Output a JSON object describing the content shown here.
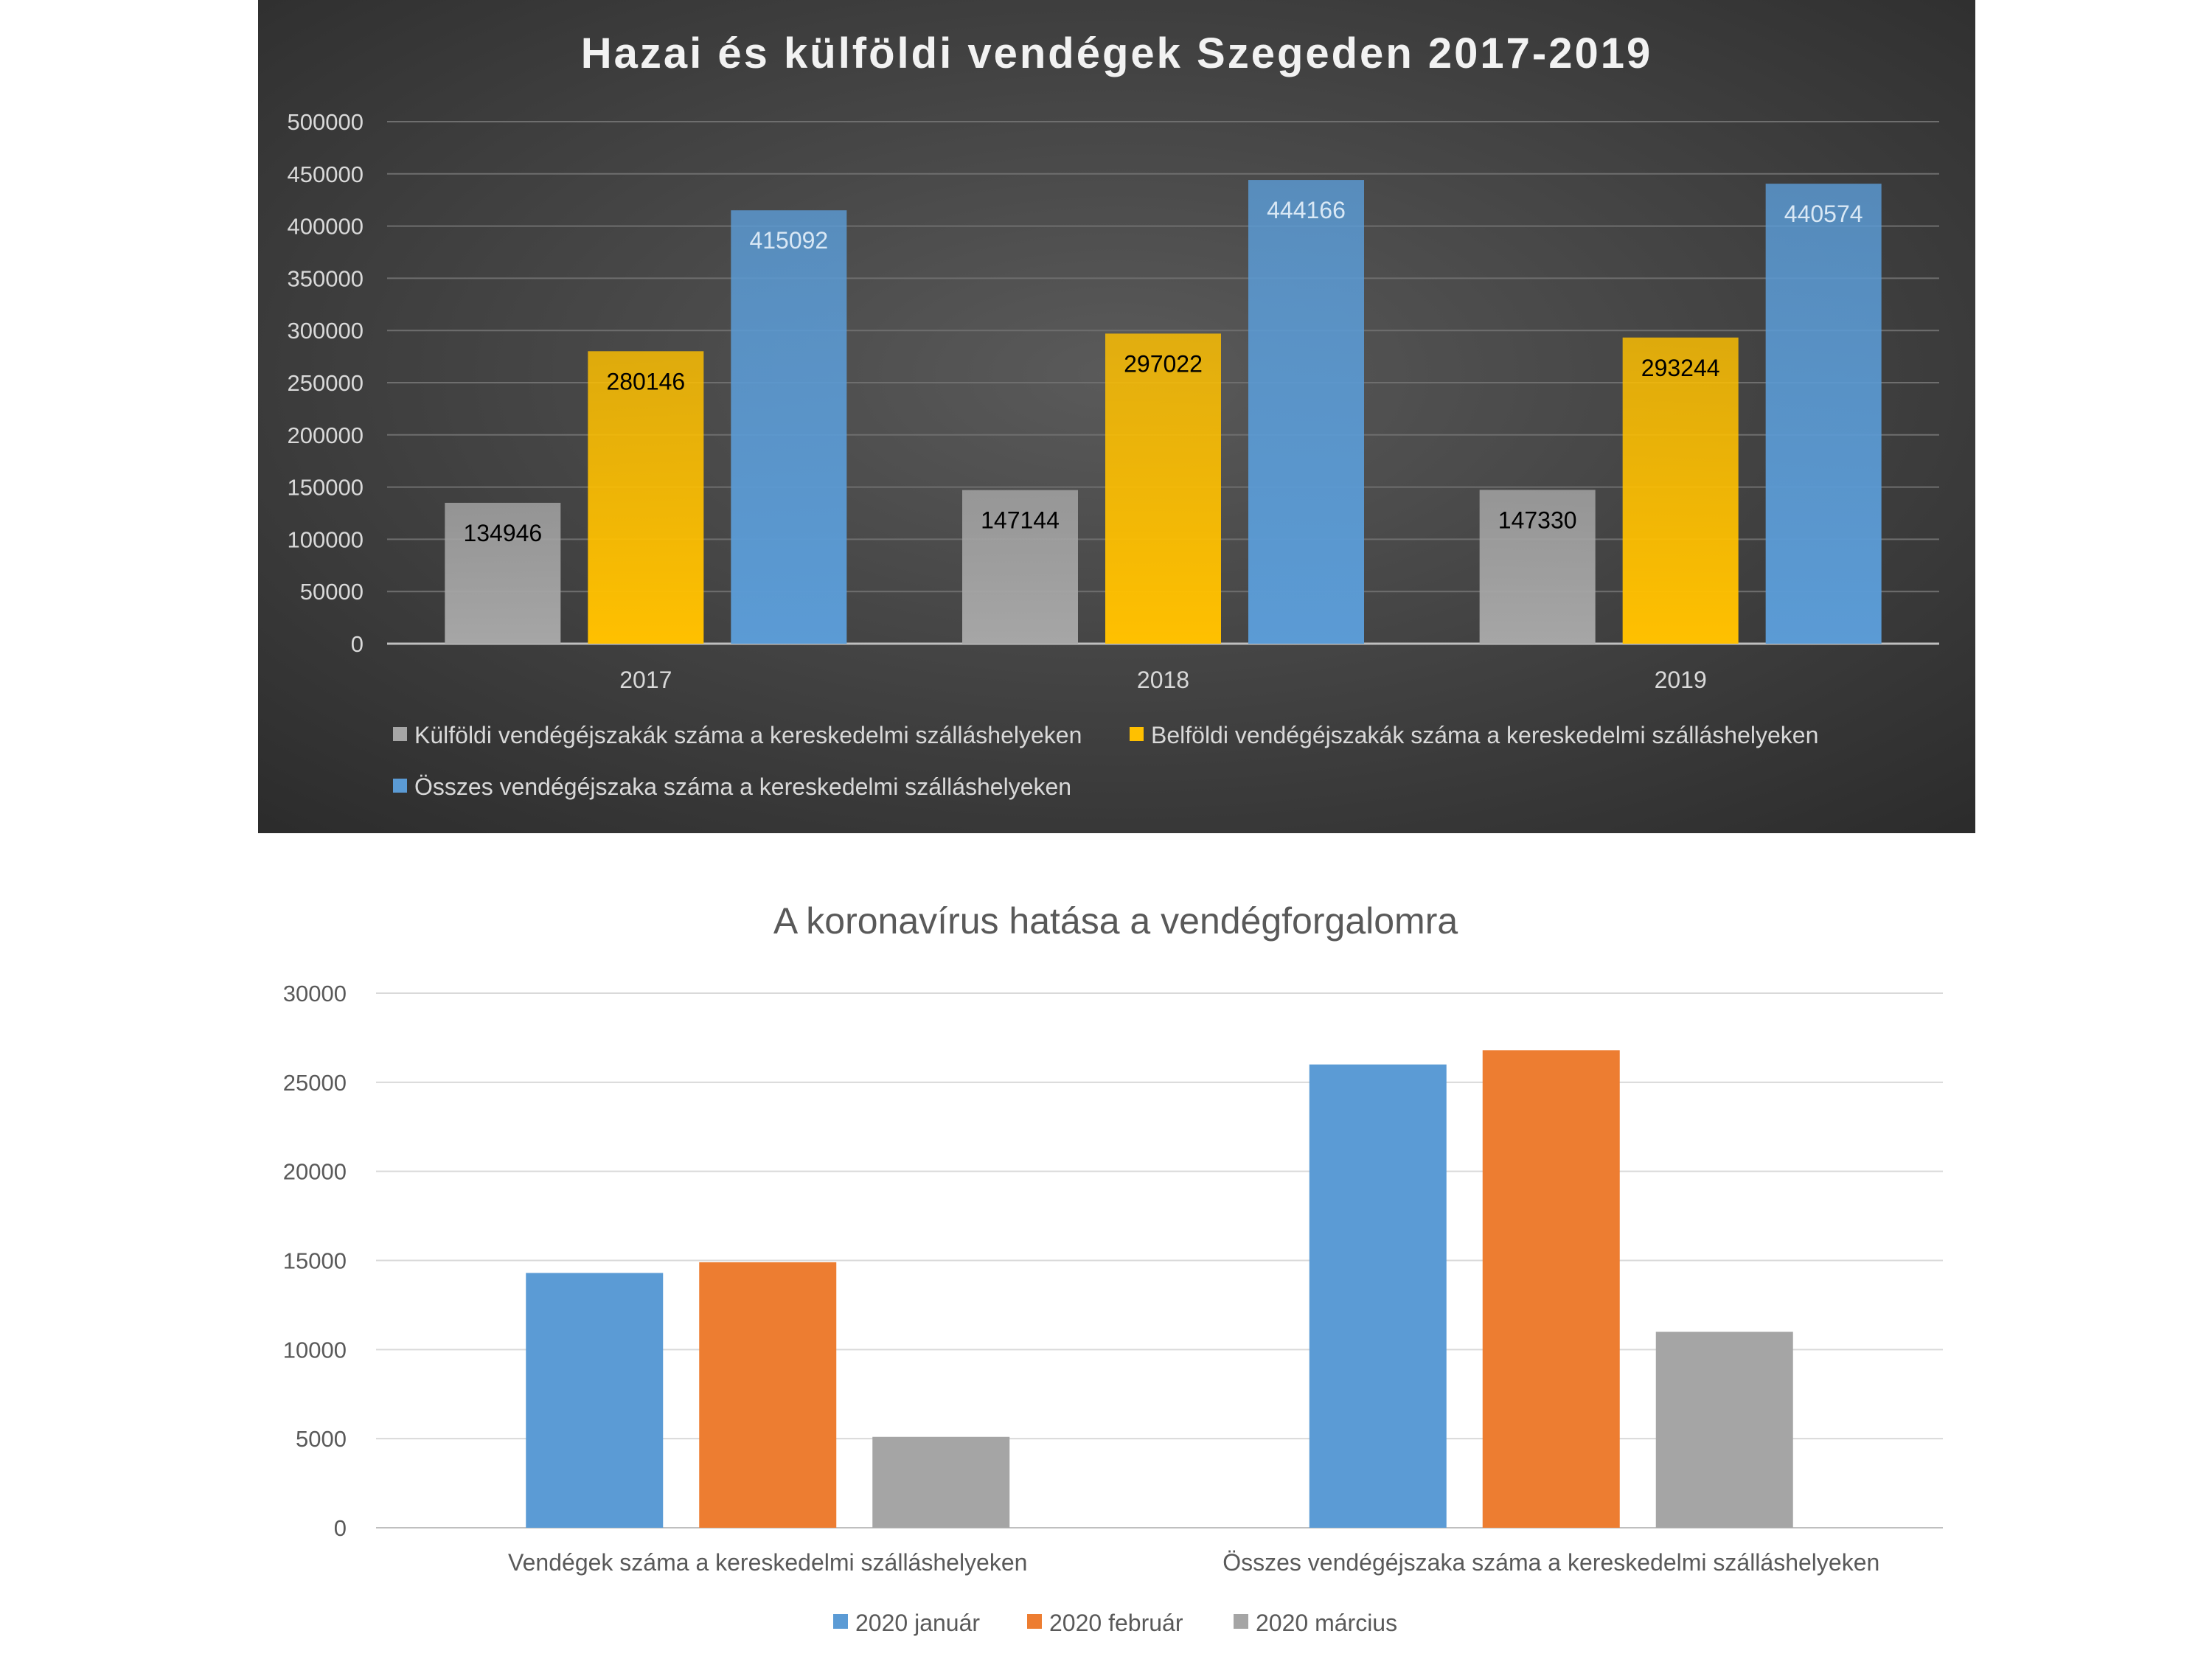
{
  "chart_data": [
    {
      "type": "bar",
      "title": "Hazai és külföldi vendégek Szegeden 2017-2019",
      "categories": [
        "2017",
        "2018",
        "2019"
      ],
      "series": [
        {
          "name": "Külföldi vendégéjszakák száma a kereskedelmi szálláshelyeken",
          "values": [
            134946,
            147144,
            147330
          ],
          "color": "#a6a6a6",
          "label_color": "#000000"
        },
        {
          "name": "Belföldi vendégéjszakák száma a kereskedelmi szálláshelyeken",
          "values": [
            280146,
            297022,
            293244
          ],
          "color": "#ffc000",
          "label_color": "#000000"
        },
        {
          "name": "Összes vendégéjszaka száma a kereskedelmi szálláshelyeken",
          "values": [
            415092,
            444166,
            440574
          ],
          "color": "#5b9bd5",
          "label_color": "#d9e8f5"
        }
      ],
      "yticks": [
        "0",
        "50000",
        "100000",
        "150000",
        "200000",
        "250000",
        "300000",
        "350000",
        "400000",
        "450000",
        "500000"
      ],
      "ylim": [
        0,
        500000
      ],
      "xlabel": "",
      "ylabel": "",
      "grid": true,
      "legend": "bottom",
      "background": "dark"
    },
    {
      "type": "bar",
      "title": "A koronavírus hatása a vendégforgalomra",
      "categories": [
        "Vendégek száma a kereskedelmi szálláshelyeken",
        "Összes vendégéjszaka száma a kereskedelmi szálláshelyeken"
      ],
      "series": [
        {
          "name": "2020 január",
          "values": [
            14300,
            26000
          ],
          "color": "#5b9bd5"
        },
        {
          "name": "2020 február",
          "values": [
            14900,
            26800
          ],
          "color": "#ed7d31"
        },
        {
          "name": "2020 március",
          "values": [
            5100,
            11000
          ],
          "color": "#a5a5a5"
        }
      ],
      "yticks": [
        "0",
        "5000",
        "10000",
        "15000",
        "20000",
        "25000",
        "30000"
      ],
      "ylim": [
        0,
        30000
      ],
      "xlabel": "",
      "ylabel": "",
      "grid": true,
      "legend": "bottom",
      "background": "light"
    }
  ]
}
